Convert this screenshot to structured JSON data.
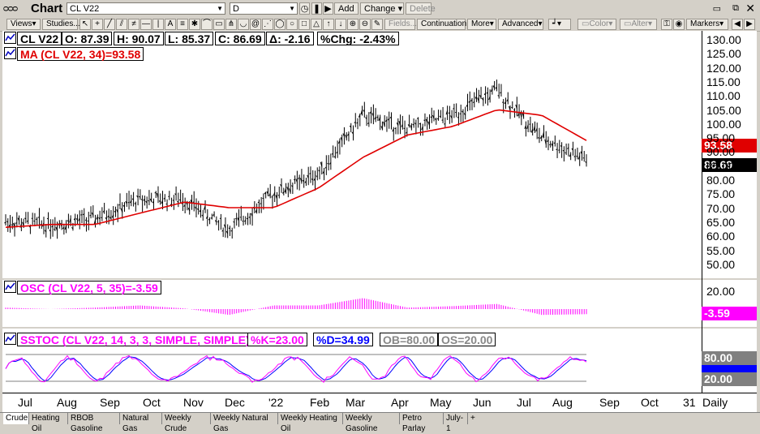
{
  "app": {
    "title": "Chart"
  },
  "toolbar": {
    "symbol": "CL V22",
    "period": "D",
    "add_label": "Add",
    "change_label": "Change",
    "delete_label": "Delete",
    "views_label": "Views",
    "studies_label": "Studies...",
    "fields_label": "Fields...",
    "continuation_label": "Continuation",
    "more_label": "More",
    "advanced_label": "Advanced",
    "color_label": "Color",
    "alter_label": "Alter",
    "markers_label": "Markers"
  },
  "quote": {
    "symbol": "CL V22",
    "open": "O: 87.39",
    "high": "H: 90.07",
    "low": "L: 85.37",
    "close": "C: 86.69",
    "change": "Δ: -2.16",
    "pct_change": "%Chg: -2.43%"
  },
  "ma": {
    "label": "MA (CL V22, 34)=93.58",
    "value": "93.58",
    "color": "#e00000"
  },
  "last_price": "86.69",
  "osc": {
    "label": "OSC (CL V22, 5, 35)=-3.59",
    "value": "-3.59",
    "color": "#ff00ff"
  },
  "stoch": {
    "label": "SSTOC (CL V22, 14, 3, 3, SIMPLE, SIMPLE)",
    "k": "%K=23.00",
    "d": "%D=34.99",
    "ob": "OB=80.00",
    "os": "OS=20.00",
    "k_color": "#ff00ff",
    "d_color": "#0000ff",
    "ob_value": "80.00",
    "os_value": "20.00"
  },
  "price_axis": [
    "130.00",
    "125.00",
    "120.00",
    "115.00",
    "110.00",
    "105.00",
    "100.00",
    "95.00",
    "90.00",
    "85.00",
    "80.00",
    "75.00",
    "70.00",
    "65.00",
    "60.00",
    "55.00",
    "50.00"
  ],
  "osc_axis": [
    "20.00"
  ],
  "x_axis": [
    "Jul",
    "Aug",
    "Sep",
    "Oct",
    "Nov",
    "Dec",
    "'22",
    "Feb",
    "Mar",
    "Apr",
    "May",
    "Jun",
    "Jul",
    "Aug",
    "Sep",
    "Oct",
    "31",
    "Daily"
  ],
  "tabs": [
    "Crude",
    "Heating Oil",
    "RBOB Gasoline",
    "Natural Gas",
    "Weekly Crude",
    "Weekly Natural Gas",
    "Weekly Heating Oil",
    "Weekly Gasoline",
    "Petro Parlay",
    "July-1",
    "+"
  ],
  "chart_data": {
    "type": "line",
    "title": "CL V22",
    "x": [
      "Jul",
      "Aug",
      "Sep",
      "Oct",
      "Nov",
      "Dec",
      "'22",
      "Feb",
      "Mar",
      "Apr",
      "May",
      "Jun",
      "Jul",
      "Aug"
    ],
    "series": [
      {
        "name": "CL V22",
        "values": [
          65,
          64,
          66,
          73,
          73,
          62,
          75,
          82,
          103,
          98,
          103,
          112,
          95,
          87
        ]
      },
      {
        "name": "MA (CL V22, 34)",
        "values": [
          63,
          64,
          64,
          68,
          72,
          70,
          70,
          77,
          88,
          96,
          99,
          105,
          103,
          94
        ]
      }
    ],
    "ylim": [
      50,
      130
    ]
  }
}
